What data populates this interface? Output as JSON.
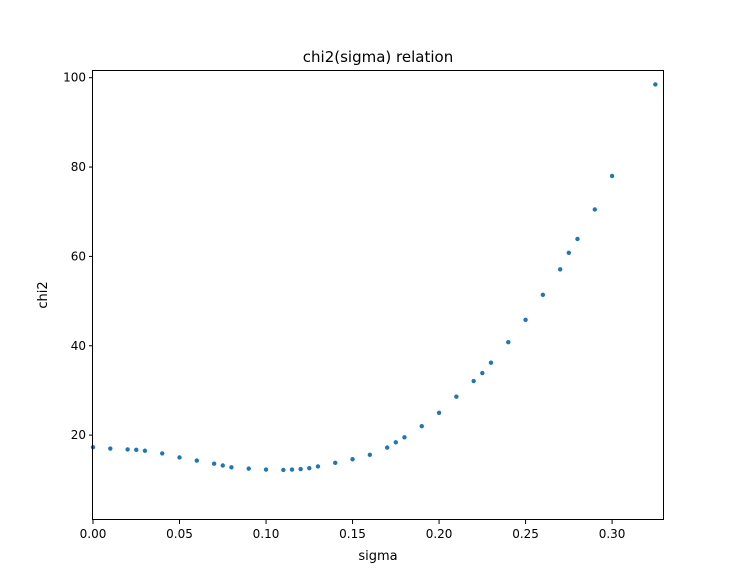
{
  "chart_data": {
    "type": "scatter",
    "title": "chi2(sigma) relation",
    "xlabel": "sigma",
    "ylabel": "chi2",
    "xlim": [
      0.0,
      0.33
    ],
    "ylim": [
      1.0,
      101.5
    ],
    "xticks": [
      0.0,
      0.05,
      0.1,
      0.15,
      0.2,
      0.25,
      0.3
    ],
    "xtick_labels": [
      "0.00",
      "0.05",
      "0.10",
      "0.15",
      "0.20",
      "0.25",
      "0.30"
    ],
    "yticks": [
      20,
      40,
      60,
      80,
      100
    ],
    "ytick_labels": [
      "20",
      "40",
      "60",
      "80",
      "100"
    ],
    "grid": false,
    "legend": "none",
    "marker_color": "#1f77b4",
    "series": [
      {
        "x": [
          0.0,
          0.01,
          0.02,
          0.025,
          0.03,
          0.04,
          0.05,
          0.06,
          0.07,
          0.075,
          0.08,
          0.09,
          0.1,
          0.11,
          0.115,
          0.12,
          0.125,
          0.13,
          0.14,
          0.15,
          0.16,
          0.17,
          0.175,
          0.18,
          0.19,
          0.2,
          0.21,
          0.22,
          0.225,
          0.23,
          0.24,
          0.25,
          0.26,
          0.27,
          0.275,
          0.28,
          0.29,
          0.3,
          0.325
        ],
        "y": [
          17.3,
          17.0,
          16.8,
          16.7,
          16.5,
          15.9,
          15.0,
          14.3,
          13.6,
          13.2,
          12.8,
          12.5,
          12.3,
          12.2,
          12.3,
          12.4,
          12.6,
          13.0,
          13.8,
          14.6,
          15.6,
          17.2,
          18.4,
          19.5,
          22.0,
          25.0,
          28.6,
          32.1,
          33.9,
          36.2,
          40.8,
          45.8,
          51.4,
          57.1,
          60.8,
          63.9,
          70.5,
          78.0,
          98.5
        ]
      }
    ]
  }
}
